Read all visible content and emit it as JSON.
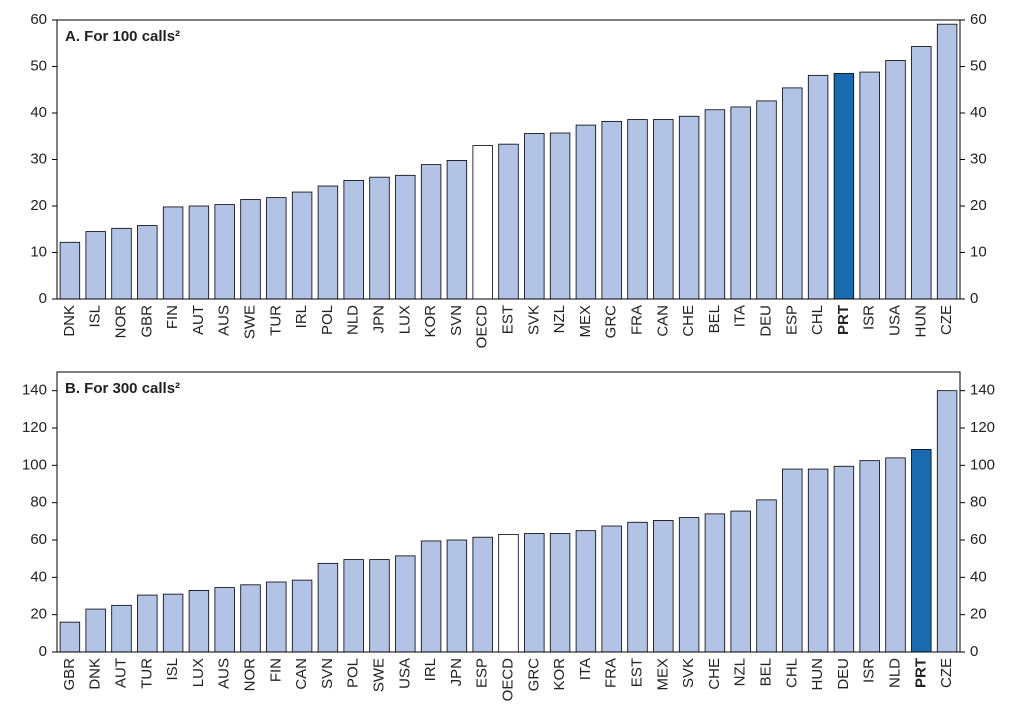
{
  "chart_data": [
    {
      "type": "bar",
      "title": "A. For 100 calls²",
      "categories": [
        "DNK",
        "ISL",
        "NOR",
        "GBR",
        "FIN",
        "AUT",
        "AUS",
        "SWE",
        "TUR",
        "IRL",
        "POL",
        "NLD",
        "JPN",
        "LUX",
        "KOR",
        "SVN",
        "OECD",
        "EST",
        "SVK",
        "NZL",
        "MEX",
        "GRC",
        "FRA",
        "CAN",
        "CHE",
        "BEL",
        "ITA",
        "DEU",
        "ESP",
        "CHL",
        "PRT",
        "ISR",
        "USA",
        "HUN",
        "CZE"
      ],
      "values": [
        12.2,
        14.5,
        15.2,
        15.8,
        19.8,
        20,
        20.3,
        21.4,
        21.8,
        23,
        24.3,
        25.5,
        26.2,
        26.6,
        28.9,
        29.8,
        33,
        33.3,
        35.6,
        35.7,
        37.4,
        38.2,
        38.6,
        38.6,
        39.3,
        40.7,
        41.3,
        42.6,
        45.4,
        48.1,
        48.5,
        48.8,
        51.3,
        54.3,
        59.1
      ],
      "colors": [
        "#b3c3e6",
        "#b3c3e6",
        "#b3c3e6",
        "#b3c3e6",
        "#b3c3e6",
        "#b3c3e6",
        "#b3c3e6",
        "#b3c3e6",
        "#b3c3e6",
        "#b3c3e6",
        "#b3c3e6",
        "#b3c3e6",
        "#b3c3e6",
        "#b3c3e6",
        "#b3c3e6",
        "#b3c3e6",
        "#ffffff",
        "#b3c3e6",
        "#b3c3e6",
        "#b3c3e6",
        "#b3c3e6",
        "#b3c3e6",
        "#b3c3e6",
        "#b3c3e6",
        "#b3c3e6",
        "#b3c3e6",
        "#b3c3e6",
        "#b3c3e6",
        "#b3c3e6",
        "#b3c3e6",
        "#1a6ab0",
        "#b3c3e6",
        "#b3c3e6",
        "#b3c3e6",
        "#b3c3e6"
      ],
      "highlight_color": "#1a6ab0",
      "ylim": [
        0,
        60
      ],
      "yticks": [
        0,
        10,
        20,
        30,
        40,
        50,
        60
      ],
      "grid": false
    },
    {
      "type": "bar",
      "title": "B. For 300 calls²",
      "categories": [
        "GBR",
        "DNK",
        "AUT",
        "TUR",
        "ISL",
        "LUX",
        "AUS",
        "NOR",
        "FIN",
        "CAN",
        "SVN",
        "POL",
        "SWE",
        "USA",
        "IRL",
        "JPN",
        "ESP",
        "OECD",
        "GRC",
        "KOR",
        "ITA",
        "FRA",
        "EST",
        "MEX",
        "SVK",
        "CHE",
        "NZL",
        "BEL",
        "CHL",
        "HUN",
        "DEU",
        "ISR",
        "NLD",
        "PRT",
        "CZE"
      ],
      "values": [
        16,
        23,
        25,
        30.5,
        31,
        33,
        34.5,
        36,
        37.5,
        38.5,
        47.5,
        49.5,
        49.5,
        51.5,
        59.5,
        60,
        61.5,
        63,
        63.5,
        63.5,
        65,
        67.5,
        69.5,
        70.5,
        72,
        74,
        75.5,
        81.5,
        98,
        98,
        99.5,
        102.5,
        104,
        108.5,
        140
      ],
      "colors": [
        "#b3c3e6",
        "#b3c3e6",
        "#b3c3e6",
        "#b3c3e6",
        "#b3c3e6",
        "#b3c3e6",
        "#b3c3e6",
        "#b3c3e6",
        "#b3c3e6",
        "#b3c3e6",
        "#b3c3e6",
        "#b3c3e6",
        "#b3c3e6",
        "#b3c3e6",
        "#b3c3e6",
        "#b3c3e6",
        "#b3c3e6",
        "#ffffff",
        "#b3c3e6",
        "#b3c3e6",
        "#b3c3e6",
        "#b3c3e6",
        "#b3c3e6",
        "#b3c3e6",
        "#b3c3e6",
        "#b3c3e6",
        "#b3c3e6",
        "#b3c3e6",
        "#b3c3e6",
        "#b3c3e6",
        "#b3c3e6",
        "#b3c3e6",
        "#b3c3e6",
        "#1a6ab0",
        "#b3c3e6"
      ],
      "highlight_color": "#1a6ab0",
      "ylim": [
        0,
        150
      ],
      "yticks": [
        0,
        20,
        40,
        60,
        80,
        100,
        120,
        140
      ],
      "grid": false
    }
  ]
}
